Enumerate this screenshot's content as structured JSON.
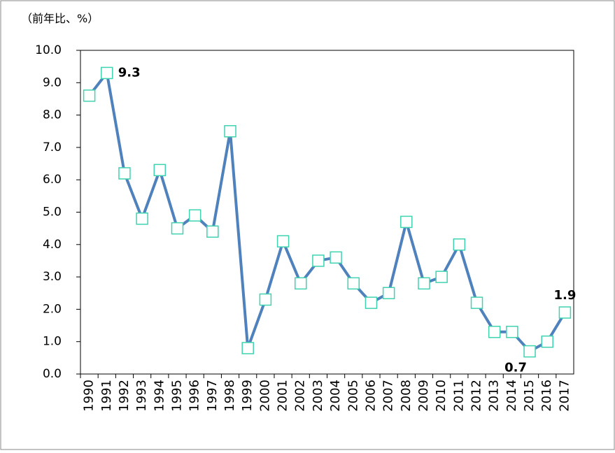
{
  "chart_data": {
    "type": "line",
    "title": "（前年比、%）",
    "categories": [
      "1990",
      "1991",
      "1992",
      "1993",
      "1994",
      "1995",
      "1996",
      "1997",
      "1998",
      "1999",
      "2000",
      "2001",
      "2002",
      "2003",
      "2004",
      "2005",
      "2006",
      "2007",
      "2008",
      "2009",
      "2010",
      "2011",
      "2012",
      "2013",
      "2014",
      "2015",
      "2016",
      "2017"
    ],
    "values": [
      8.6,
      9.3,
      6.2,
      4.8,
      6.3,
      4.5,
      4.9,
      4.4,
      7.5,
      0.8,
      2.3,
      4.1,
      2.8,
      3.5,
      3.6,
      2.8,
      2.2,
      2.5,
      4.7,
      2.8,
      3.0,
      4.0,
      2.2,
      1.3,
      1.3,
      0.7,
      1.0,
      1.9
    ],
    "value_labels": [
      null,
      "9.3",
      null,
      null,
      null,
      null,
      null,
      null,
      null,
      null,
      null,
      null,
      null,
      null,
      null,
      null,
      null,
      null,
      null,
      null,
      null,
      null,
      null,
      null,
      null,
      "0.7",
      null,
      "1.9"
    ],
    "color": "#4f81bd",
    "marker_color": "#3fd3b0",
    "ylim": [
      0,
      10
    ],
    "yticks": [
      {
        "value": 0,
        "label": "0.0"
      },
      {
        "value": 1,
        "label": "1.0"
      },
      {
        "value": 2,
        "label": "2.0"
      },
      {
        "value": 3,
        "label": "3.0"
      },
      {
        "value": 4,
        "label": "4.0"
      },
      {
        "value": 5,
        "label": "5.0"
      },
      {
        "value": 6,
        "label": "6.0"
      },
      {
        "value": 7,
        "label": "7.0"
      },
      {
        "value": 8,
        "label": "8.0"
      },
      {
        "value": 9,
        "label": "9.0"
      },
      {
        "value": 10,
        "label": "10.0"
      }
    ],
    "grid": false
  }
}
